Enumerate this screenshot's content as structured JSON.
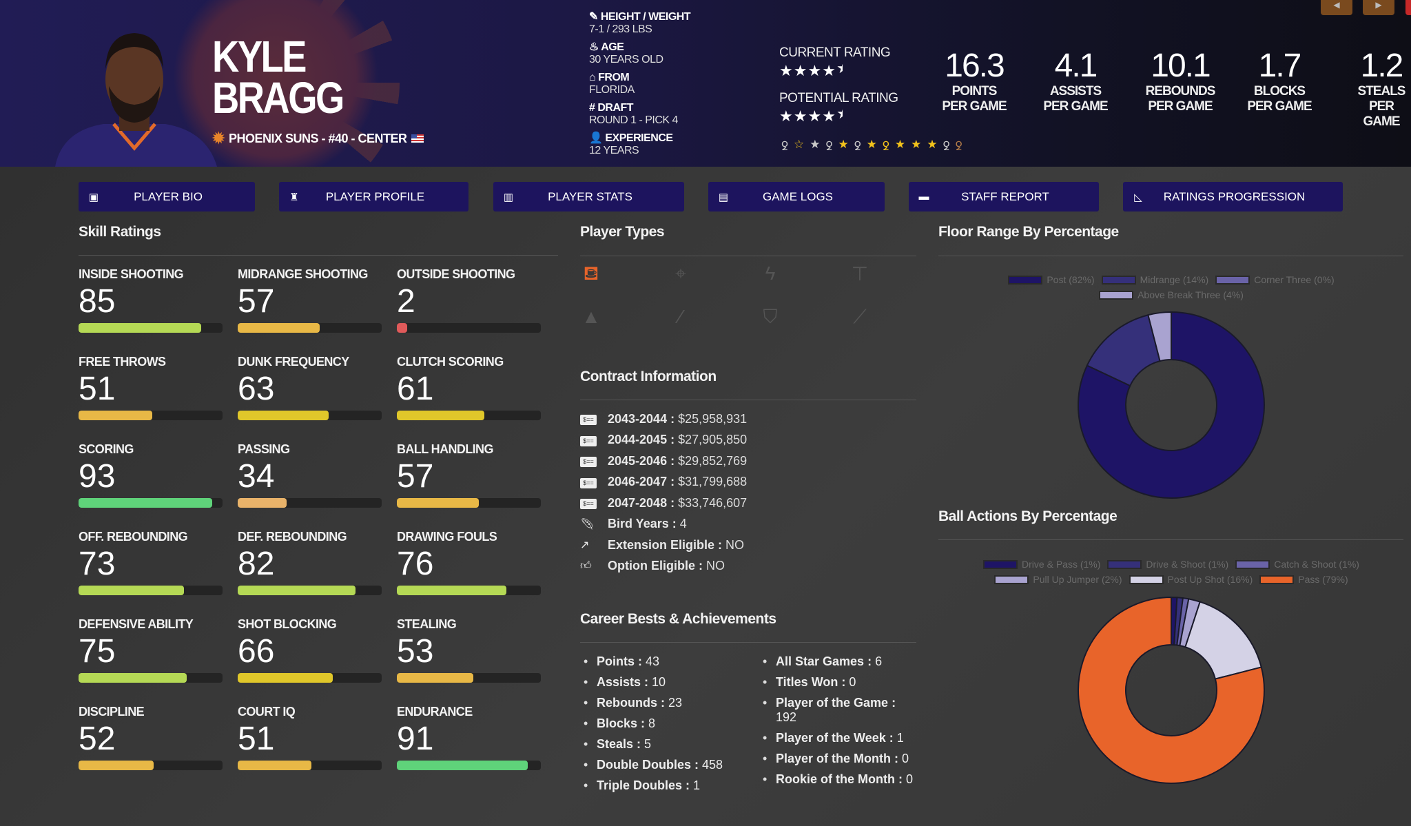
{
  "header": {
    "first_name": "KYLE",
    "last_name": "BRAGG",
    "team_line": "PHOENIX SUNS - #40 - CENTER",
    "info": [
      {
        "icon": "ruler-icon",
        "label": "HEIGHT / WEIGHT",
        "value": "7-1 / 293 LBS"
      },
      {
        "icon": "birthday-cake-icon",
        "label": "AGE",
        "value": "30 YEARS OLD"
      },
      {
        "icon": "school-icon",
        "label": "FROM",
        "value": "FLORIDA"
      },
      {
        "icon": "hashtag-icon",
        "label": "DRAFT",
        "value": "ROUND 1 - PICK 4"
      },
      {
        "icon": "user-clock-icon",
        "label": "EXPERIENCE",
        "value": "12 YEARS"
      }
    ],
    "current_rating_label": "CURRENT RATING",
    "current_rating": 4.5,
    "potential_rating_label": "POTENTIAL RATING",
    "potential_rating": 4.5,
    "badges": [
      {
        "icon": "medal-icon",
        "color": "#c8c8c8"
      },
      {
        "icon": "star-outline-icon",
        "color": "#f2c21b"
      },
      {
        "icon": "star-icon",
        "color": "#c8c8c8"
      },
      {
        "icon": "medal-icon",
        "color": "#c8c8c8"
      },
      {
        "icon": "star-icon",
        "color": "#f2c21b"
      },
      {
        "icon": "medal-icon",
        "color": "#c8c8c8"
      },
      {
        "icon": "star-icon",
        "color": "#f2c21b"
      },
      {
        "icon": "medal-icon",
        "color": "#f2c21b"
      },
      {
        "icon": "star-icon",
        "color": "#f2c21b"
      },
      {
        "icon": "star-icon",
        "color": "#f2c21b"
      },
      {
        "icon": "star-icon",
        "color": "#f2c21b"
      },
      {
        "icon": "medal-icon",
        "color": "#c8c8c8"
      },
      {
        "icon": "medal-icon",
        "color": "#b07a48"
      }
    ],
    "stats": [
      {
        "value": "16.3",
        "l1": "POINTS",
        "l2": "PER GAME"
      },
      {
        "value": "4.1",
        "l1": "ASSISTS",
        "l2": "PER GAME"
      },
      {
        "value": "10.1",
        "l1": "REBOUNDS",
        "l2": "PER GAME"
      },
      {
        "value": "1.7",
        "l1": "BLOCKS",
        "l2": "PER GAME"
      },
      {
        "value": "1.2",
        "l1": "STEALS",
        "l2": "PER GAME"
      }
    ]
  },
  "tabs": [
    {
      "icon": "id-badge-icon",
      "label": "PLAYER BIO"
    },
    {
      "icon": "user-book-icon",
      "label": "PLAYER PROFILE"
    },
    {
      "icon": "bar-chart-icon",
      "label": "PLAYER STATS"
    },
    {
      "icon": "clipboard-icon",
      "label": "GAME LOGS"
    },
    {
      "icon": "comment-icon",
      "label": "STAFF REPORT"
    },
    {
      "icon": "line-chart-icon",
      "label": "RATINGS PROGRESSION"
    }
  ],
  "skills_title": "Skill Ratings",
  "skills": [
    {
      "label": "INSIDE SHOOTING",
      "value": 85,
      "color": "#b5d955"
    },
    {
      "label": "MIDRANGE SHOOTING",
      "value": 57,
      "color": "#e8b846"
    },
    {
      "label": "OUTSIDE SHOOTING",
      "value": 2,
      "color": "#e05a5a"
    },
    {
      "label": "FREE THROWS",
      "value": 51,
      "color": "#e8b846"
    },
    {
      "label": "DUNK FREQUENCY",
      "value": 63,
      "color": "#e0c72a"
    },
    {
      "label": "CLUTCH SCORING",
      "value": 61,
      "color": "#e0c72a"
    },
    {
      "label": "SCORING",
      "value": 93,
      "color": "#5fd37a"
    },
    {
      "label": "PASSING",
      "value": 34,
      "color": "#e9b36a"
    },
    {
      "label": "BALL HANDLING",
      "value": 57,
      "color": "#e8b846"
    },
    {
      "label": "OFF. REBOUNDING",
      "value": 73,
      "color": "#b5d955"
    },
    {
      "label": "DEF. REBOUNDING",
      "value": 82,
      "color": "#b5d955"
    },
    {
      "label": "DRAWING FOULS",
      "value": 76,
      "color": "#b5d955"
    },
    {
      "label": "DEFENSIVE ABILITY",
      "value": 75,
      "color": "#b5d955"
    },
    {
      "label": "SHOT BLOCKING",
      "value": 66,
      "color": "#e0c72a"
    },
    {
      "label": "STEALING",
      "value": 53,
      "color": "#e8b846"
    },
    {
      "label": "DISCIPLINE",
      "value": 52,
      "color": "#e8b846"
    },
    {
      "label": "COURT IQ",
      "value": 51,
      "color": "#e8b846"
    },
    {
      "label": "ENDURANCE",
      "value": 91,
      "color": "#5fd37a"
    }
  ],
  "player_types_title": "Player Types",
  "player_types": [
    {
      "icon": "basket-icon",
      "glyph": "⛾",
      "active": true
    },
    {
      "icon": "crosshairs-icon",
      "glyph": "⌖",
      "active": false
    },
    {
      "icon": "bolt-icon",
      "glyph": "ϟ",
      "active": false
    },
    {
      "icon": "paint-roller-icon",
      "glyph": "⊤",
      "active": false
    },
    {
      "icon": "wizard-hat-icon",
      "glyph": "▲",
      "active": false
    },
    {
      "icon": "magic-wand-icon",
      "glyph": "⁄",
      "active": false
    },
    {
      "icon": "shield-icon",
      "glyph": "⛉",
      "active": false
    },
    {
      "icon": "broom-icon",
      "glyph": "⟋",
      "active": false
    }
  ],
  "contract_title": "Contract Information",
  "contract": [
    {
      "icon": "money-check-icon",
      "label": "2043-2044",
      "value": "$25,958,931"
    },
    {
      "icon": "money-check-icon",
      "label": "2044-2045",
      "value": "$27,905,850"
    },
    {
      "icon": "money-check-icon",
      "label": "2045-2046",
      "value": "$29,852,769"
    },
    {
      "icon": "money-check-icon",
      "label": "2046-2047",
      "value": "$31,799,688"
    },
    {
      "icon": "money-check-icon",
      "label": "2047-2048",
      "value": "$33,746,607"
    },
    {
      "icon": "feather-icon",
      "label": "Bird Years",
      "value": "4"
    },
    {
      "icon": "external-link-icon",
      "label": "Extension Eligible",
      "value": "NO"
    },
    {
      "icon": "thumbs-up-icon",
      "label": "Option Eligible",
      "value": "NO"
    }
  ],
  "career_title": "Career Bests & Achievements",
  "career_left": [
    {
      "label": "Points",
      "value": "43"
    },
    {
      "label": "Assists",
      "value": "10"
    },
    {
      "label": "Rebounds",
      "value": "23"
    },
    {
      "label": "Blocks",
      "value": "8"
    },
    {
      "label": "Steals",
      "value": "5"
    },
    {
      "label": "Double Doubles",
      "value": "458"
    },
    {
      "label": "Triple Doubles",
      "value": "1"
    }
  ],
  "career_right": [
    {
      "label": "All Star Games",
      "value": "6"
    },
    {
      "label": "Titles Won",
      "value": "0"
    },
    {
      "label": "Player of the Game",
      "value": "192"
    },
    {
      "label": "Player of the Week",
      "value": "1"
    },
    {
      "label": "Player of the Month",
      "value": "0"
    },
    {
      "label": "Rookie of the Month",
      "value": "0"
    }
  ],
  "chart_data": [
    {
      "type": "pie",
      "title": "Floor Range By Percentage",
      "donut": true,
      "legend": "top",
      "categories": [
        "Post (82%)",
        "Midrange (14%)",
        "Corner Three (0%)",
        "Above Break Three (4%)"
      ],
      "values": [
        82,
        14,
        0,
        4
      ],
      "colors": [
        "#1e1466",
        "#35307a",
        "#6a63a8",
        "#a9a3d0"
      ]
    },
    {
      "type": "pie",
      "title": "Ball Actions By Percentage",
      "donut": true,
      "legend": "top",
      "categories": [
        "Drive & Pass (1%)",
        "Drive & Shoot (1%)",
        "Catch & Shoot (1%)",
        "Pull Up Jumper (2%)",
        "Post Up Shot (16%)",
        "Pass (79%)"
      ],
      "values": [
        1,
        1,
        1,
        2,
        16,
        79
      ],
      "colors": [
        "#1e1466",
        "#35307a",
        "#6a63a8",
        "#a9a3d0",
        "#d4d2e6",
        "#e8642a"
      ]
    }
  ]
}
